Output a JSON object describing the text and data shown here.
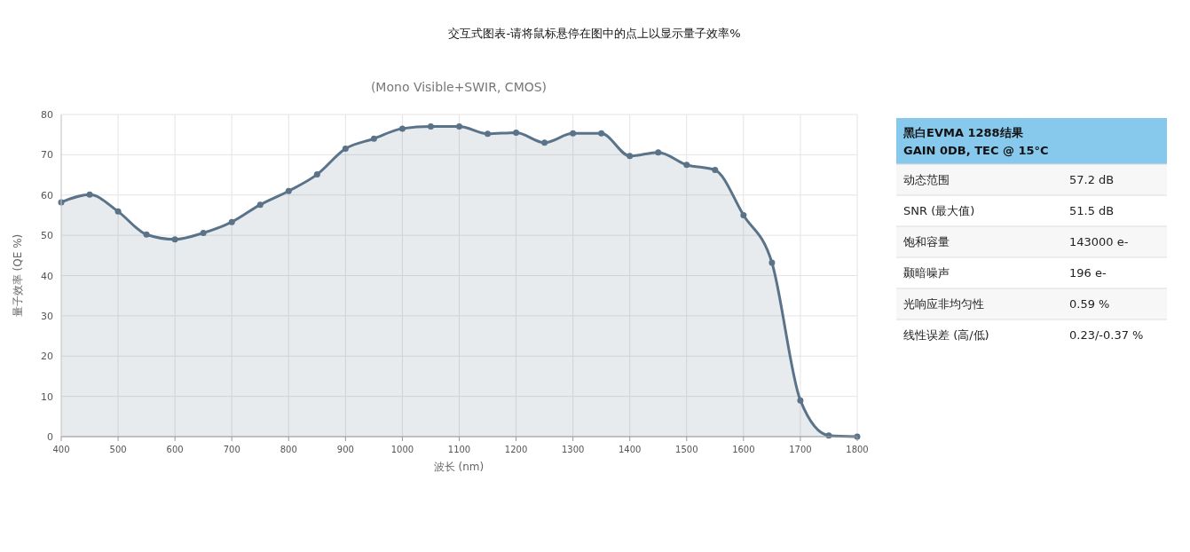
{
  "chart_data": [
    {
      "type": "area",
      "title": "交互式图表-请将鼠标悬停在图中的点上以显示量子效率%",
      "subtitle": "(Mono Visible+SWIR, CMOS)",
      "xlabel": "波长 (nm)",
      "ylabel": "量子效率 (QE %)",
      "x": [
        400,
        450,
        500,
        550,
        600,
        650,
        700,
        750,
        800,
        850,
        900,
        950,
        1000,
        1050,
        1100,
        1150,
        1200,
        1250,
        1300,
        1350,
        1400,
        1450,
        1500,
        1550,
        1600,
        1650,
        1700,
        1750,
        1800
      ],
      "series": [
        {
          "color": "#5a7389",
          "values": [
            58.2,
            60.1,
            55.9,
            50.2,
            49.0,
            50.6,
            53.3,
            57.6,
            61.0,
            65.1,
            71.5,
            74.0,
            76.5,
            77.0,
            77.0,
            75.2,
            75.5,
            73.0,
            75.3,
            75.3,
            69.7,
            70.6,
            67.5,
            66.2,
            55.0,
            43.2,
            9.0,
            0.3,
            0
          ]
        }
      ],
      "xlim": [
        400,
        1800
      ],
      "xticks": [
        400,
        500,
        600,
        700,
        800,
        900,
        1000,
        1100,
        1200,
        1300,
        1400,
        1500,
        1600,
        1700,
        1800
      ],
      "ylim": [
        0,
        80
      ],
      "yticks": [
        0,
        10,
        20,
        30,
        40,
        50,
        60,
        70,
        80
      ],
      "grid": true,
      "marker": "circle"
    },
    {
      "type": "other",
      "title": "黑白EVMA 1288结果",
      "subtitle": "GAIN 0DB, TEC @ 15°C",
      "annotations": [
        "动态范围",
        "57.2 dB",
        "SNR (最大值)",
        "51.5 dB",
        "饱和容量",
        "143000 e-",
        "颞暗噪声",
        "196 e-",
        "光响应非均匀性",
        "0.59 %",
        "线性误差 (高/低)",
        "0.23/-0.37 %"
      ]
    }
  ]
}
